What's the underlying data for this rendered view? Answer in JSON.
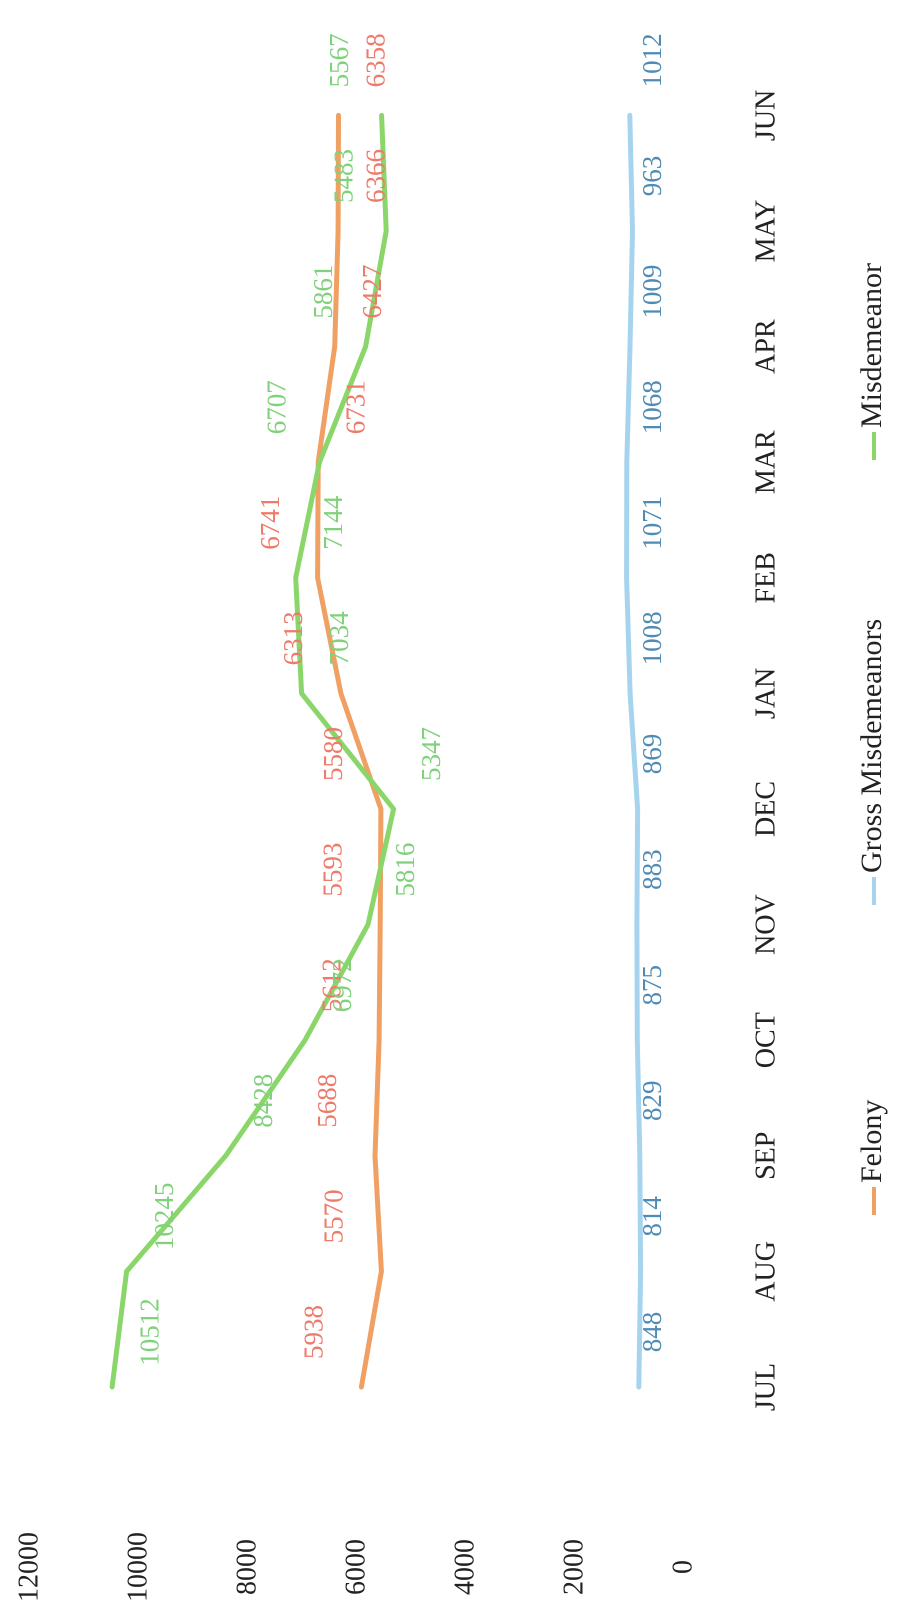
{
  "chart_data": {
    "type": "line",
    "title": "",
    "xlabel": "",
    "ylabel": "",
    "categories": [
      "JUL",
      "AUG",
      "SEP",
      "OCT",
      "NOV",
      "DEC",
      "JAN",
      "FEB",
      "MAR",
      "APR",
      "MAY",
      "JUN"
    ],
    "ylim": [
      0,
      12000
    ],
    "yticks": [
      "0",
      "2000",
      "4000",
      "6000",
      "8000",
      "10000",
      "12000"
    ],
    "grid": false,
    "legend_position": "bottom",
    "orientation": "rotated-90-clockwise",
    "series": [
      {
        "name": "Felony",
        "color": "#f0a062",
        "label_color": "#ee7a6a",
        "values": [
          5938,
          5570,
          5688,
          5612,
          5593,
          5580,
          6313,
          6741,
          6731,
          6427,
          6366,
          6358
        ]
      },
      {
        "name": "Gross Misdemeanors",
        "color": "#a6d4ef",
        "label_color": "#4f8bb4",
        "values": [
          848,
          814,
          829,
          875,
          883,
          869,
          1008,
          1071,
          1068,
          1009,
          963,
          1012
        ]
      },
      {
        "name": "Misdemeanor",
        "color": "#8bd66a",
        "label_color": "#7fd17a",
        "values": [
          10512,
          10245,
          8428,
          6972,
          5816,
          5347,
          7034,
          7144,
          6707,
          5861,
          5483,
          5567
        ]
      }
    ]
  }
}
